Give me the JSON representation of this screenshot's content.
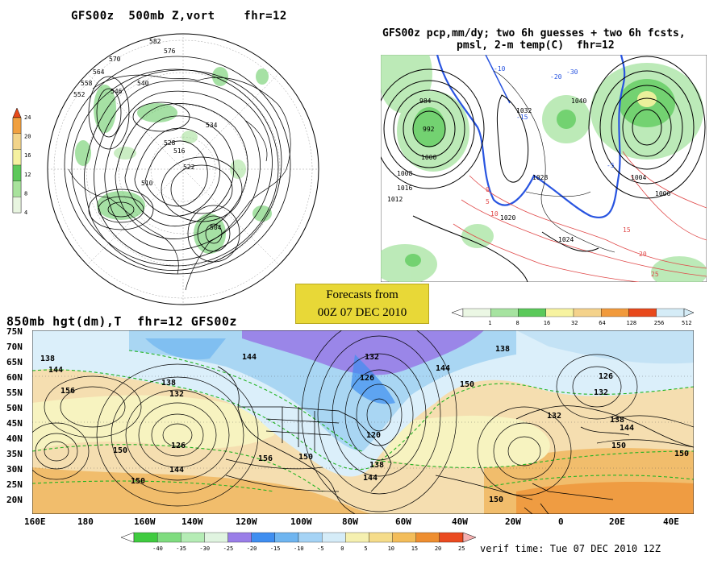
{
  "panel_500mb": {
    "title": "GFS00z  500mb Z,vort    fhr=12",
    "colorbar_ticks": [
      "24",
      "20",
      "16",
      "12",
      "8",
      "4"
    ],
    "colorbar_colors": [
      "#e8f5e0",
      "#a8e29c",
      "#5dc85a",
      "#f5f1a0",
      "#f2d48a",
      "#f0a040"
    ],
    "height_labels": [
      "582",
      "576",
      "570",
      "564",
      "558",
      "552",
      "546",
      "540",
      "534",
      "528",
      "522",
      "516",
      "510",
      "504"
    ]
  },
  "panel_precip": {
    "title_line1": "GFS00z pcp,mm/dy; two 6h guesses + two 6h fcsts,",
    "title_line2": "pmsl, 2-m temp(C)  fhr=12",
    "colorbar_ticks": [
      "1",
      "8",
      "16",
      "32",
      "64",
      "128",
      "256",
      "512"
    ],
    "colorbar_colors": [
      "#ebf7e4",
      "#a6e3a0",
      "#5bc95a",
      "#f7f3a0",
      "#f4d28b",
      "#f19a3c",
      "#e8491c",
      "#d5ecf7"
    ],
    "pressure_labels": [
      "992",
      "984",
      "1000",
      "1008",
      "1016",
      "1024",
      "1032",
      "1040",
      "1020",
      "1028",
      "1004",
      "1012",
      "1006"
    ],
    "temp_labels": [
      "-10",
      "-15",
      "-20",
      "-30",
      "-5",
      "0",
      "5",
      "10",
      "15",
      "20",
      "25"
    ]
  },
  "forecast_box": {
    "line1": "Forecasts from",
    "line2": "00Z 07 DEC 2010"
  },
  "panel_850mb": {
    "title": "850mb hgt(dm),T  fhr=12 GFS00z",
    "lat_labels": [
      "75N",
      "70N",
      "65N",
      "60N",
      "55N",
      "50N",
      "45N",
      "40N",
      "35N",
      "30N",
      "25N",
      "20N"
    ],
    "lon_labels": [
      "160E",
      "180",
      "160W",
      "140W",
      "120W",
      "100W",
      "80W",
      "60W",
      "40W",
      "20W",
      "0",
      "20E",
      "40E"
    ],
    "height_labels": [
      "138",
      "144",
      "156",
      "138",
      "132",
      "126",
      "144",
      "150",
      "150",
      "156",
      "150",
      "132",
      "126",
      "120",
      "138",
      "144",
      "144",
      "150",
      "150",
      "132",
      "126",
      "132",
      "138",
      "144",
      "150",
      "150",
      "138",
      "144"
    ],
    "temp_colorbar_ticks": [
      "-40",
      "-35",
      "-30",
      "-25",
      "-20",
      "-15",
      "-10",
      "-5",
      "0",
      "5",
      "10",
      "15",
      "20",
      "25"
    ],
    "temp_colorbar_colors": [
      "#3fcb3f",
      "#7fdc7f",
      "#b5ecb5",
      "#e0f4e0",
      "#9a7ee8",
      "#3f8ef0",
      "#6fb5f0",
      "#a5d3f5",
      "#d5ecf8",
      "#f5f0b0",
      "#f5dc8a",
      "#f3bd5a",
      "#ee8e30",
      "#ea4a20"
    ],
    "verif_time": "verif time: Tue 07 DEC 2010 12Z"
  },
  "colors": {
    "ocean_cold": "#a9d6f3",
    "ocean_cool": "#dbeffa",
    "land_warm": "#f5deb0",
    "land_hot": "#f1bd6c",
    "ice": "#f7fbff",
    "purple_cold": "#9a86e8",
    "green_dash": "#22b422"
  }
}
